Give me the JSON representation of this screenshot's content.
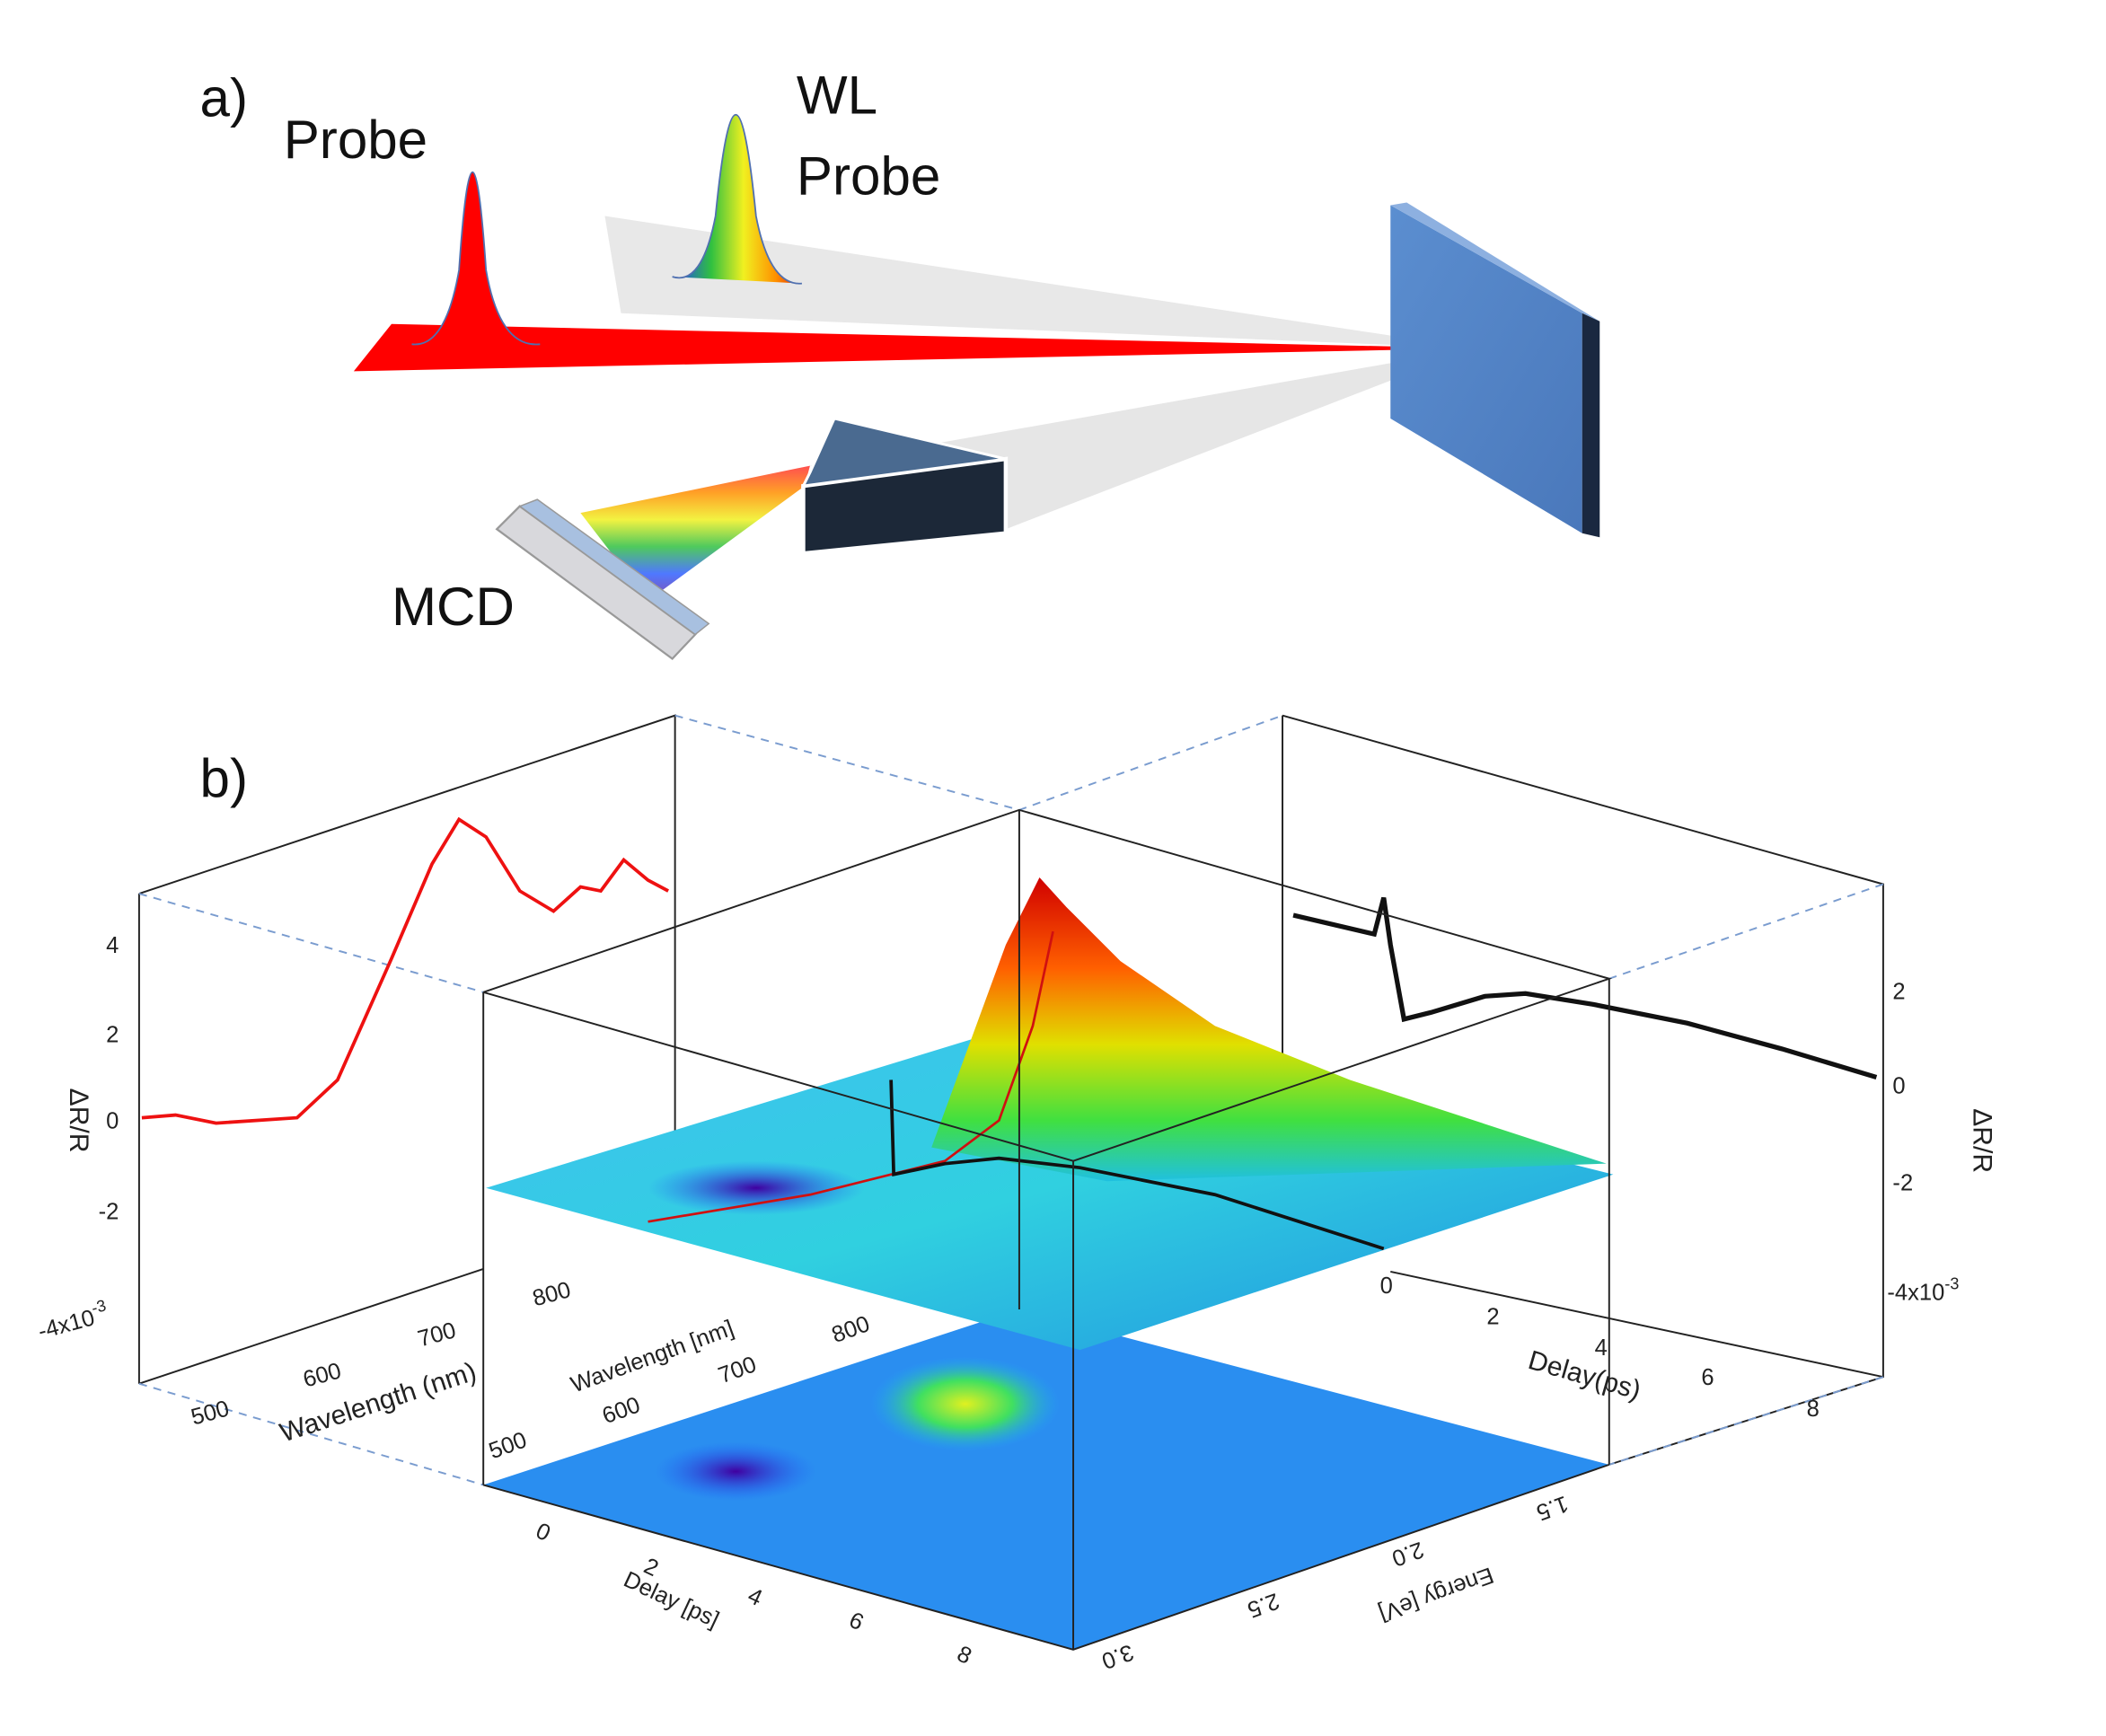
{
  "panel_a": {
    "label": "a)",
    "probe": "Probe",
    "wl_probe": [
      "WL",
      "Probe"
    ],
    "mcd": "MCD"
  },
  "panel_b": {
    "label": "b)",
    "spectrum": {
      "y_label": "ΔR/R",
      "x_label": "Wavelength (nm)",
      "xticks": [
        500,
        600,
        700,
        800
      ],
      "yticks": [
        4,
        2,
        0,
        -2,
        {
          "label": "-4x10",
          "exponent": "-3"
        }
      ]
    },
    "kinetics": {
      "y_label": "ΔR/R",
      "x_label": "Delay(ps)",
      "xticks": [
        0,
        2,
        4,
        6,
        8
      ],
      "yticks": [
        2,
        0,
        -2,
        {
          "label": "-4x10",
          "exponent": "-3"
        }
      ]
    },
    "surface": {
      "wavelength_label": "Wavelength [nm]",
      "wavelength_ticks": [
        500,
        600,
        700,
        800
      ],
      "delay_label": "Delay [ps]",
      "delay_ticks": [
        0,
        2,
        4,
        6,
        8
      ],
      "energy_label": "Energy [eV]",
      "energy_ticks": [
        "1.5",
        "2.0",
        "2.5",
        "3.0"
      ]
    }
  }
}
